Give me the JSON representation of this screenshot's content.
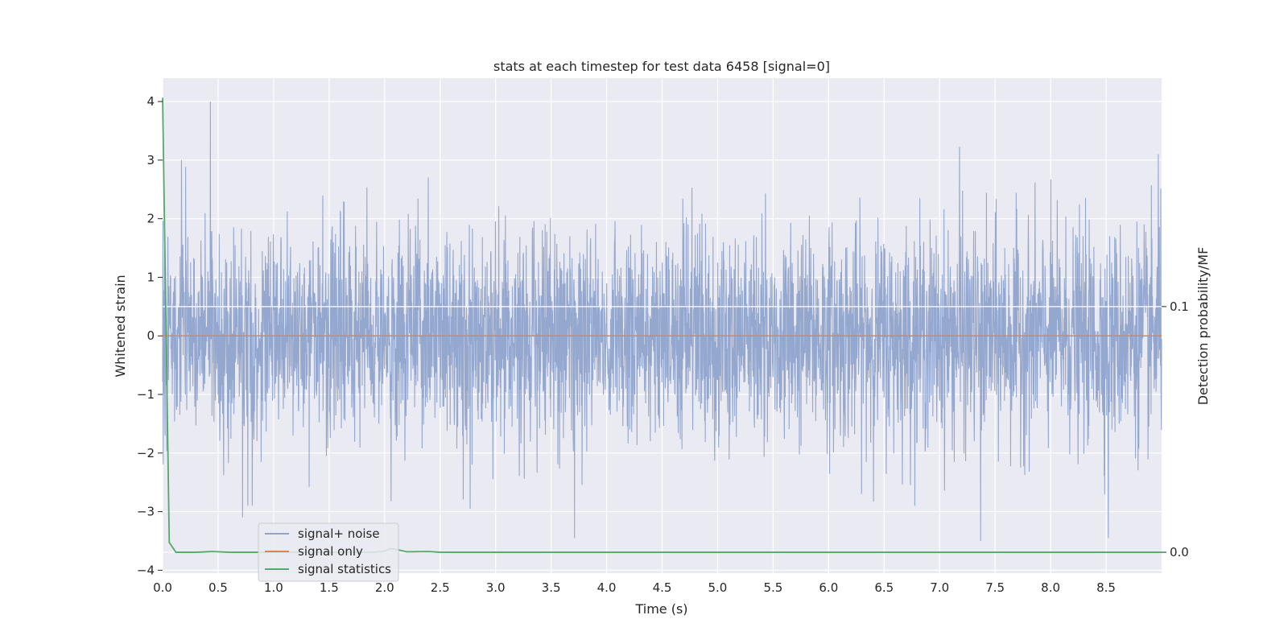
{
  "chart_data": {
    "type": "line",
    "title": "stats at each timestep for test data 6458 [signal=0]",
    "xlabel": "Time (s)",
    "ylabel": "Whitened strain",
    "y2label": "Detection probability/MF",
    "xlim": [
      0,
      9.0
    ],
    "ylim": [
      -4.05,
      4.4
    ],
    "y2lim": [
      -0.0085,
      0.193
    ],
    "xticks": [
      "0.0",
      "0.5",
      "1.0",
      "1.5",
      "2.0",
      "2.5",
      "3.0",
      "3.5",
      "4.0",
      "4.5",
      "5.0",
      "5.5",
      "6.0",
      "6.5",
      "7.0",
      "7.5",
      "8.0",
      "8.5"
    ],
    "yticks": [
      "−4",
      "−3",
      "−2",
      "−1",
      "0",
      "1",
      "2",
      "3",
      "4"
    ],
    "y2ticks": [
      "0.0",
      "0.1"
    ],
    "grid": true,
    "legend_position": "bottom-left",
    "series": [
      {
        "name": "signal+ noise",
        "color": "#8fa3cc",
        "axis": "left",
        "duration": 9.0,
        "note_peaks": [
          [
            0.43,
            4.0
          ],
          [
            3.71,
            -3.45
          ],
          [
            7.18,
            3.23
          ],
          [
            2.77,
            -2.95
          ],
          [
            8.52,
            -3.45
          ],
          [
            0.72,
            -3.1
          ],
          [
            7.37,
            -3.5
          ],
          [
            8.97,
            3.1
          ]
        ]
      },
      {
        "name": "signal only",
        "color": "#dd8452",
        "axis": "left",
        "x": [
          0,
          9.0
        ],
        "y": [
          0,
          0
        ]
      },
      {
        "name": "signal statistics",
        "color": "#55a868",
        "axis": "right",
        "x": [
          0,
          0.06,
          0.12,
          0.3,
          0.45,
          0.6,
          1.5,
          1.9,
          2.0,
          2.05,
          2.1,
          2.2,
          2.4,
          2.5,
          4.0,
          6.0,
          8.0,
          9.0
        ],
        "y": [
          0.185,
          0.004,
          0.0,
          0.0,
          0.0003,
          0.0,
          0.0,
          0.0,
          0.0004,
          0.0015,
          0.0012,
          0.0002,
          0.0003,
          0.0,
          0.0,
          0.0,
          0.0,
          0.0
        ]
      }
    ]
  }
}
